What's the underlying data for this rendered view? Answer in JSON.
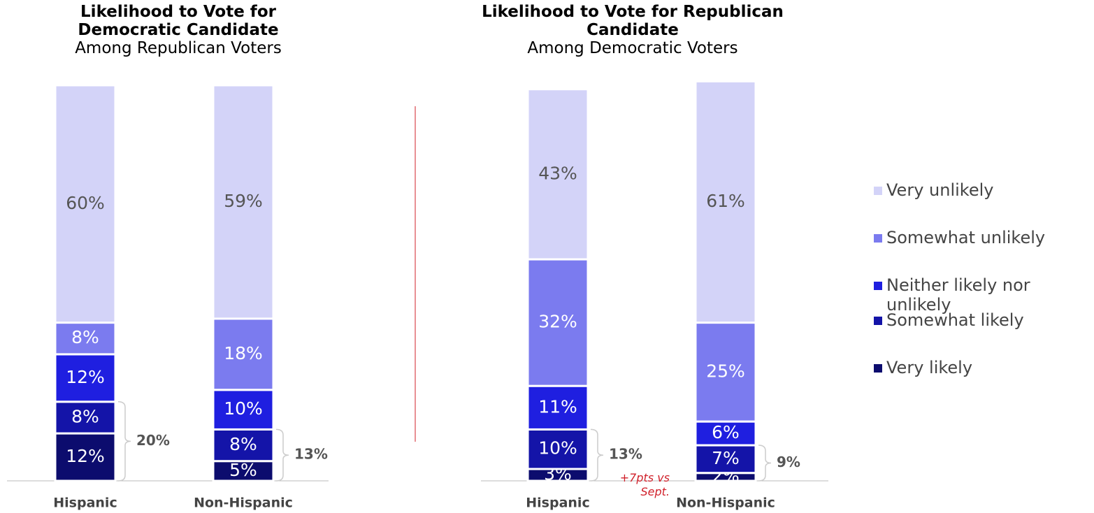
{
  "chart_data": [
    {
      "type": "stacked_bar",
      "title": "Likelihood to Vote for Democratic Candidate",
      "subtitle": "Among Republican Voters",
      "categories": [
        "Hispanic",
        "Non-Hispanic"
      ],
      "ylim": [
        0,
        100
      ],
      "series": [
        {
          "name": "Very unlikely",
          "color": "#d3d3f8",
          "values": [
            60,
            59
          ],
          "value_labels": [
            "60%",
            "59%"
          ]
        },
        {
          "name": "Somewhat unlikely",
          "color": "#7b7bef",
          "values": [
            8,
            18
          ],
          "value_labels": [
            "8%",
            "18%"
          ]
        },
        {
          "name": "Neither likely nor unlikely",
          "color": "#1f1fe0",
          "values": [
            12,
            10
          ],
          "value_labels": [
            "12%",
            "10%"
          ]
        },
        {
          "name": "Somewhat likely",
          "color": "#1414a8",
          "values": [
            8,
            8
          ],
          "value_labels": [
            "8%",
            "8%"
          ]
        },
        {
          "name": "Very likely",
          "color": "#0c0c6e",
          "values": [
            12,
            5
          ],
          "value_labels": [
            "12%",
            "5%"
          ]
        }
      ],
      "bracket_labels": [
        "20%",
        "13%"
      ]
    },
    {
      "type": "stacked_bar",
      "title": "Likelihood to Vote for Republican Candidate",
      "subtitle": "Among Democratic Voters",
      "categories": [
        "Hispanic",
        "Non-Hispanic"
      ],
      "ylim": [
        0,
        100
      ],
      "series": [
        {
          "name": "Very unlikely",
          "color": "#d3d3f8",
          "values": [
            43,
            61
          ],
          "value_labels": [
            "43%",
            "61%"
          ]
        },
        {
          "name": "Somewhat unlikely",
          "color": "#7b7bef",
          "values": [
            32,
            25
          ],
          "value_labels": [
            "32%",
            "25%"
          ]
        },
        {
          "name": "Neither likely nor unlikely",
          "color": "#1f1fe0",
          "values": [
            11,
            6
          ],
          "value_labels": [
            "11%",
            "6%"
          ]
        },
        {
          "name": "Somewhat likely",
          "color": "#1414a8",
          "values": [
            10,
            7
          ],
          "value_labels": [
            "10%",
            "7%"
          ]
        },
        {
          "name": "Very likely",
          "color": "#0c0c6e",
          "values": [
            3,
            2
          ],
          "value_labels": [
            "3%",
            "2%"
          ]
        }
      ],
      "bracket_labels": [
        "13%",
        "9%"
      ],
      "note": "+7pts vs Sept."
    }
  ]
}
